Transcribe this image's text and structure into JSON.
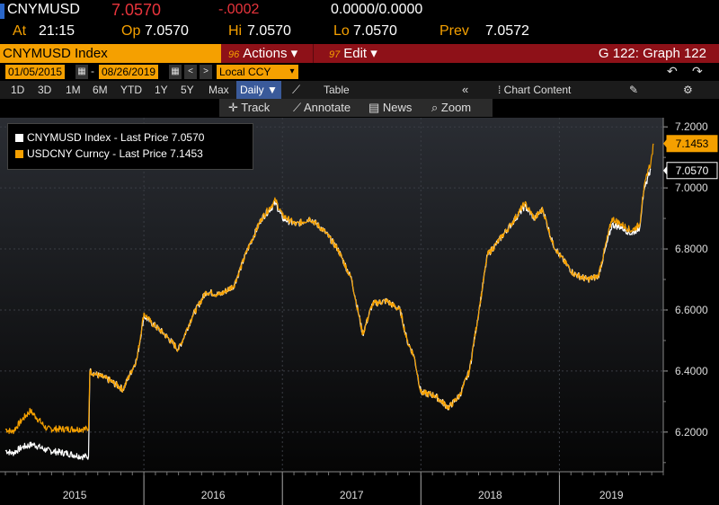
{
  "quote": {
    "ticker": "CNYMUSD",
    "price": "7.0570",
    "change": "-.0002",
    "bid_ask": "0.0000/0.0000",
    "at_label": "At",
    "time": "21:15",
    "op_label": "Op",
    "op": "7.0570",
    "hi_label": "Hi",
    "hi": "7.0570",
    "lo_label": "Lo",
    "lo": "7.0570",
    "prev_label": "Prev",
    "prev": "7.0572"
  },
  "function_bar": {
    "title": "CNYMUSD Index",
    "actions_num": "96",
    "actions_label": "Actions ▾",
    "edit_num": "97",
    "edit_label": "Edit ▾",
    "graph_label": "G 122: Graph 122"
  },
  "date_range": {
    "start": "01/05/2015",
    "end": "08/26/2019",
    "dash": "-",
    "currency": "Local CCY",
    "prev_btn": "<",
    "next_btn": ">"
  },
  "periods": [
    "1D",
    "3D",
    "1M",
    "6M",
    "YTD",
    "1Y",
    "5Y",
    "Max"
  ],
  "frequency": "Daily ▼",
  "table_label": "Table",
  "chart_content_label": "Chart Content",
  "tools": {
    "track": "Track",
    "annotate": "Annotate",
    "news": "News",
    "zoom": "Zoom"
  },
  "legend": [
    {
      "name": "CNYMUSD Index - Last Price 7.0570",
      "color": "#ffffff"
    },
    {
      "name": "USDCNY Curncy - Last Price 7.1453",
      "color": "#f5a000"
    }
  ],
  "colors": {
    "accent": "#f5a000",
    "function_bar": "#8e1118",
    "negative": "#e8343c"
  },
  "chart_data": {
    "type": "line",
    "ylim": [
      6.07,
      7.23
    ],
    "yticks": [
      "6.2000",
      "6.4000",
      "6.6000",
      "6.8000",
      "7.0000",
      "7.2000"
    ],
    "xticks": [
      "2015",
      "2016",
      "2017",
      "2018",
      "2019"
    ],
    "xlim": [
      2015.0,
      2019.75
    ],
    "grid": true,
    "legend_position": "top-left",
    "last_labels": [
      {
        "text": "7.1453",
        "value": 7.1453,
        "series": 1
      },
      {
        "text": "7.0570",
        "value": 7.057,
        "series": 0
      }
    ],
    "series": [
      {
        "name": "CNYMUSD Index",
        "color": "#ffffff",
        "points": [
          [
            2015.0,
            6.14
          ],
          [
            2015.05,
            6.13
          ],
          [
            2015.12,
            6.15
          ],
          [
            2015.2,
            6.16
          ],
          [
            2015.3,
            6.14
          ],
          [
            2015.45,
            6.13
          ],
          [
            2015.55,
            6.12
          ],
          [
            2015.6,
            6.12
          ],
          [
            2015.61,
            6.4
          ],
          [
            2015.65,
            6.39
          ],
          [
            2015.75,
            6.37
          ],
          [
            2015.85,
            6.34
          ],
          [
            2015.95,
            6.44
          ],
          [
            2016.0,
            6.58
          ],
          [
            2016.05,
            6.56
          ],
          [
            2016.15,
            6.52
          ],
          [
            2016.25,
            6.47
          ],
          [
            2016.35,
            6.58
          ],
          [
            2016.45,
            6.66
          ],
          [
            2016.55,
            6.65
          ],
          [
            2016.65,
            6.68
          ],
          [
            2016.75,
            6.8
          ],
          [
            2016.85,
            6.9
          ],
          [
            2016.95,
            6.95
          ],
          [
            2017.0,
            6.9
          ],
          [
            2017.1,
            6.88
          ],
          [
            2017.2,
            6.9
          ],
          [
            2017.3,
            6.86
          ],
          [
            2017.4,
            6.8
          ],
          [
            2017.5,
            6.7
          ],
          [
            2017.58,
            6.52
          ],
          [
            2017.65,
            6.62
          ],
          [
            2017.75,
            6.63
          ],
          [
            2017.85,
            6.6
          ],
          [
            2017.9,
            6.5
          ],
          [
            2017.95,
            6.45
          ],
          [
            2018.0,
            6.33
          ],
          [
            2018.1,
            6.32
          ],
          [
            2018.2,
            6.28
          ],
          [
            2018.28,
            6.32
          ],
          [
            2018.35,
            6.4
          ],
          [
            2018.42,
            6.6
          ],
          [
            2018.48,
            6.78
          ],
          [
            2018.55,
            6.82
          ],
          [
            2018.65,
            6.88
          ],
          [
            2018.75,
            6.94
          ],
          [
            2018.82,
            6.9
          ],
          [
            2018.88,
            6.93
          ],
          [
            2018.95,
            6.82
          ],
          [
            2019.0,
            6.78
          ],
          [
            2019.1,
            6.72
          ],
          [
            2019.2,
            6.7
          ],
          [
            2019.28,
            6.71
          ],
          [
            2019.38,
            6.88
          ],
          [
            2019.45,
            6.87
          ],
          [
            2019.52,
            6.85
          ],
          [
            2019.58,
            6.87
          ],
          [
            2019.6,
            6.96
          ],
          [
            2019.64,
            7.04
          ],
          [
            2019.66,
            7.06
          ]
        ]
      },
      {
        "name": "USDCNY Curncy",
        "color": "#f5a000",
        "points": [
          [
            2015.0,
            6.21
          ],
          [
            2015.05,
            6.2
          ],
          [
            2015.12,
            6.24
          ],
          [
            2015.18,
            6.27
          ],
          [
            2015.22,
            6.25
          ],
          [
            2015.3,
            6.21
          ],
          [
            2015.45,
            6.21
          ],
          [
            2015.55,
            6.21
          ],
          [
            2015.6,
            6.21
          ],
          [
            2015.61,
            6.4
          ],
          [
            2015.65,
            6.39
          ],
          [
            2015.75,
            6.37
          ],
          [
            2015.85,
            6.34
          ],
          [
            2015.95,
            6.44
          ],
          [
            2016.0,
            6.59
          ],
          [
            2016.05,
            6.56
          ],
          [
            2016.15,
            6.52
          ],
          [
            2016.25,
            6.47
          ],
          [
            2016.35,
            6.58
          ],
          [
            2016.45,
            6.66
          ],
          [
            2016.55,
            6.65
          ],
          [
            2016.65,
            6.68
          ],
          [
            2016.75,
            6.8
          ],
          [
            2016.85,
            6.9
          ],
          [
            2016.95,
            6.96
          ],
          [
            2017.0,
            6.91
          ],
          [
            2017.1,
            6.88
          ],
          [
            2017.2,
            6.9
          ],
          [
            2017.3,
            6.86
          ],
          [
            2017.4,
            6.8
          ],
          [
            2017.5,
            6.7
          ],
          [
            2017.58,
            6.52
          ],
          [
            2017.65,
            6.62
          ],
          [
            2017.75,
            6.63
          ],
          [
            2017.85,
            6.6
          ],
          [
            2017.9,
            6.5
          ],
          [
            2017.95,
            6.45
          ],
          [
            2018.0,
            6.33
          ],
          [
            2018.1,
            6.32
          ],
          [
            2018.2,
            6.28
          ],
          [
            2018.28,
            6.32
          ],
          [
            2018.35,
            6.4
          ],
          [
            2018.42,
            6.6
          ],
          [
            2018.48,
            6.78
          ],
          [
            2018.55,
            6.82
          ],
          [
            2018.65,
            6.88
          ],
          [
            2018.75,
            6.95
          ],
          [
            2018.82,
            6.9
          ],
          [
            2018.88,
            6.93
          ],
          [
            2018.95,
            6.82
          ],
          [
            2019.0,
            6.78
          ],
          [
            2019.1,
            6.72
          ],
          [
            2019.2,
            6.7
          ],
          [
            2019.28,
            6.71
          ],
          [
            2019.38,
            6.9
          ],
          [
            2019.45,
            6.88
          ],
          [
            2019.52,
            6.86
          ],
          [
            2019.58,
            6.88
          ],
          [
            2019.6,
            6.97
          ],
          [
            2019.64,
            7.06
          ],
          [
            2019.66,
            7.08
          ],
          [
            2019.68,
            7.145
          ]
        ]
      }
    ]
  }
}
